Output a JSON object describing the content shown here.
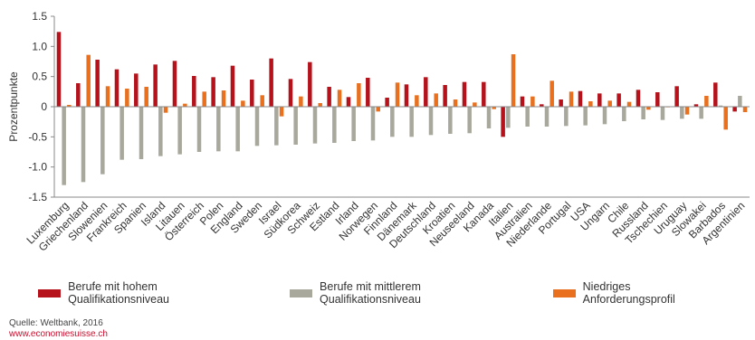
{
  "chart_data": {
    "type": "bar",
    "ylabel": "Prozentpunkte",
    "ylim": [
      -1.5,
      1.5
    ],
    "yticks": [
      1.5,
      1.0,
      0.5,
      0.0,
      -0.5,
      -1.0,
      -1.5
    ],
    "ytick_labels": [
      "1.5",
      "1.0",
      "0.5",
      "0",
      "-0.5",
      "-1.0",
      "-1.5"
    ],
    "categories": [
      "Luxemburg",
      "Griechenland",
      "Slowenien",
      "Frankreich",
      "Spanien",
      "Island",
      "Litauen",
      "Österreich",
      "Polen",
      "England",
      "Sweden",
      "Israel",
      "Südkorea",
      "Schweiz",
      "Estland",
      "Irland",
      "Norwegen",
      "Finnland",
      "Dänemark",
      "Deutschland",
      "Kroatien",
      "Neuseeland",
      "Kanada",
      "Italien",
      "Australien",
      "Niederlande",
      "Portugal",
      "USA",
      "Ungarn",
      "Chile",
      "Russland",
      "Tschechien",
      "Uruguay",
      "Slowakei",
      "Barbados",
      "Argentinien"
    ],
    "series": [
      {
        "name": "Berufe mit hohem Qualifikationsniveau",
        "color": "#b5121b",
        "values": [
          1.24,
          0.39,
          0.78,
          0.62,
          0.55,
          0.7,
          0.76,
          0.51,
          0.49,
          0.68,
          0.45,
          0.8,
          0.46,
          0.74,
          0.33,
          0.16,
          0.48,
          0.15,
          0.37,
          0.49,
          0.36,
          0.41,
          0.41,
          -0.5,
          0.17,
          0.04,
          0.12,
          0.26,
          0.22,
          0.22,
          0.28,
          0.24,
          0.34,
          0.04,
          0.4,
          -0.08
        ]
      },
      {
        "name": "Berufe mit mittlerem Qualifikationsniveau",
        "color": "#a8a89c",
        "values": [
          -1.3,
          -1.25,
          -1.12,
          -0.88,
          -0.87,
          -0.82,
          -0.79,
          -0.75,
          -0.74,
          -0.74,
          -0.65,
          -0.64,
          -0.63,
          -0.61,
          -0.6,
          -0.57,
          -0.56,
          -0.5,
          -0.5,
          -0.47,
          -0.45,
          -0.44,
          -0.36,
          -0.35,
          -0.33,
          -0.33,
          -0.32,
          -0.31,
          -0.29,
          -0.24,
          -0.21,
          -0.22,
          -0.2,
          -0.2,
          0.02,
          0.18
        ]
      },
      {
        "name": "Niedriges Anforderungsprofil",
        "color": "#e8701e",
        "values": [
          0.03,
          0.86,
          0.34,
          0.3,
          0.33,
          -0.1,
          0.05,
          0.25,
          0.27,
          0.1,
          0.19,
          -0.16,
          0.17,
          0.06,
          0.28,
          0.39,
          -0.08,
          0.4,
          0.19,
          0.22,
          0.12,
          0.07,
          -0.04,
          0.87,
          0.17,
          0.43,
          0.25,
          0.09,
          0.1,
          0.08,
          -0.05,
          -0.01,
          -0.13,
          0.18,
          -0.38,
          -0.09
        ]
      }
    ],
    "grid": false,
    "legend_position": "bottom"
  },
  "source_text": "Quelle: Weltbank, 2016",
  "website_text": "www.economiesuisse.ch"
}
